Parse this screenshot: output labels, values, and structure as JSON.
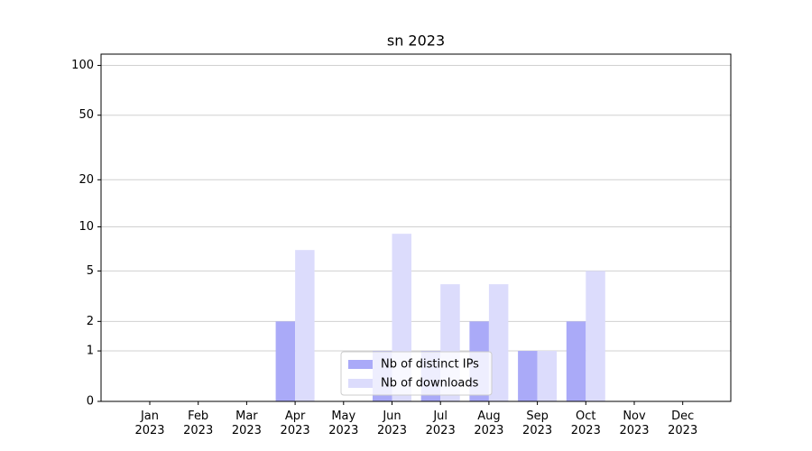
{
  "chart_data": {
    "type": "bar",
    "title": "sn 2023",
    "categories": [
      "Jan\n2023",
      "Feb\n2023",
      "Mar\n2023",
      "Apr\n2023",
      "May\n2023",
      "Jun\n2023",
      "Jul\n2023",
      "Aug\n2023",
      "Sep\n2023",
      "Oct\n2023",
      "Nov\n2023",
      "Dec\n2023"
    ],
    "series": [
      {
        "name": "Nb of distinct IPs",
        "color": "#aaaaf8",
        "values": [
          0,
          0,
          0,
          2,
          0,
          1,
          1,
          2,
          1,
          2,
          0,
          0
        ]
      },
      {
        "name": "Nb of downloads",
        "color": "#dcdcfc",
        "values": [
          0,
          0,
          0,
          7,
          0,
          9,
          4,
          4,
          1,
          5,
          0,
          0
        ]
      }
    ],
    "yscale": "log1p",
    "ylim": [
      0,
      117
    ],
    "yticks": [
      0,
      1,
      2,
      5,
      10,
      20,
      50,
      100
    ],
    "grid": true,
    "legend": "lower center"
  }
}
